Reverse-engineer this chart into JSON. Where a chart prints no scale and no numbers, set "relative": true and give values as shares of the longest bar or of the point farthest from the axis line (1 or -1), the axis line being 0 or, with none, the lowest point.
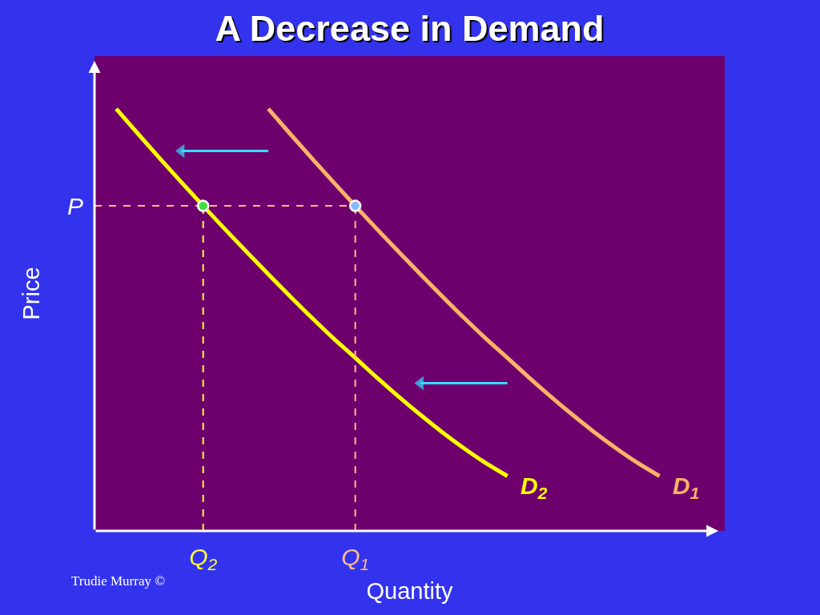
{
  "chart_data": {
    "type": "line",
    "title": "A Decrease in Demand",
    "xlabel": "Quantity",
    "ylabel": "Price",
    "relative": true,
    "grid": false,
    "categories": [
      null,
      null,
      null,
      null,
      null,
      "Q$_{2}$",
      null,
      null,
      null,
      null,
      null,
      null,
      "Q$_{1}$",
      null,
      null,
      null,
      null,
      null,
      null,
      null,
      null,
      null,
      null,
      null,
      null,
      null,
      null,
      null,
      null,
      null
    ],
    "series": [
      {
        "name": "D$_{2}$",
        "color": "#ffff00",
        "values": [
          null,
          1.0,
          0.941,
          0.883,
          0.826,
          0.77,
          0.715,
          0.661,
          0.608,
          0.556,
          0.505,
          0.456,
          0.41,
          0.363,
          0.318,
          0.275,
          0.234,
          0.196,
          0.161,
          0.13,
          null,
          null,
          null,
          null,
          null,
          null,
          null,
          null,
          null,
          null
        ]
      },
      {
        "name": "D$_{1}$",
        "color": "#ffb366",
        "values": [
          null,
          null,
          null,
          null,
          null,
          null,
          null,
          null,
          1.0,
          0.941,
          0.883,
          0.826,
          0.77,
          0.715,
          0.661,
          0.608,
          0.556,
          0.505,
          0.456,
          0.41,
          0.363,
          0.318,
          0.275,
          0.234,
          0.196,
          0.161,
          0.13,
          null,
          null,
          null
        ]
      },
      {
        "name": "P",
        "color": "#ffbb88",
        "line_style": "dashed",
        "values": [
          0.77,
          0.77,
          0.77,
          0.77,
          0.77,
          0.77,
          0.77,
          0.77,
          0.77,
          0.77,
          0.77,
          0.77,
          0.77,
          null,
          null,
          null,
          null,
          null,
          null,
          null,
          null,
          null,
          null,
          null,
          null,
          null,
          null,
          null,
          null,
          null
        ]
      },
      {
        "color": "#ffff33",
        "line_style": "dashed",
        "x": [
          "Q$_{2}$",
          "Q$_{2}$"
        ],
        "values": [
          0,
          0.77
        ]
      },
      {
        "color": "#ffbb88",
        "line_style": "dashed",
        "x": [
          "Q$_{1}$",
          "Q$_{1}$"
        ],
        "values": [
          0,
          0.77
        ]
      },
      {
        "type": "scatter",
        "color": "#44dd44",
        "marker": "circle",
        "x": [
          "Q$_{2}$"
        ],
        "values": [
          0.77
        ]
      },
      {
        "type": "scatter",
        "color": "#88bbff",
        "marker": "circle",
        "x": [
          "Q$_{1}$"
        ],
        "values": [
          0.77
        ]
      },
      {
        "color": "#33ddff",
        "values": [
          null,
          null,
          null,
          null,
          0.9,
          0.9,
          0.9,
          0.9,
          0.9,
          null,
          null,
          null,
          null,
          null,
          null,
          null,
          null,
          null,
          null,
          null,
          null,
          null,
          null,
          null,
          null,
          null,
          null,
          null,
          null,
          null
        ]
      },
      {
        "color": "#33ddff",
        "values": [
          null,
          null,
          null,
          null,
          null,
          null,
          null,
          null,
          null,
          null,
          null,
          null,
          null,
          null,
          null,
          0.35,
          0.35,
          0.35,
          0.35,
          0.35,
          null,
          null,
          null,
          null,
          null,
          null,
          null,
          null,
          null,
          null
        ]
      }
    ],
    "annotations": [
      "Trudie Murray ©"
    ]
  }
}
